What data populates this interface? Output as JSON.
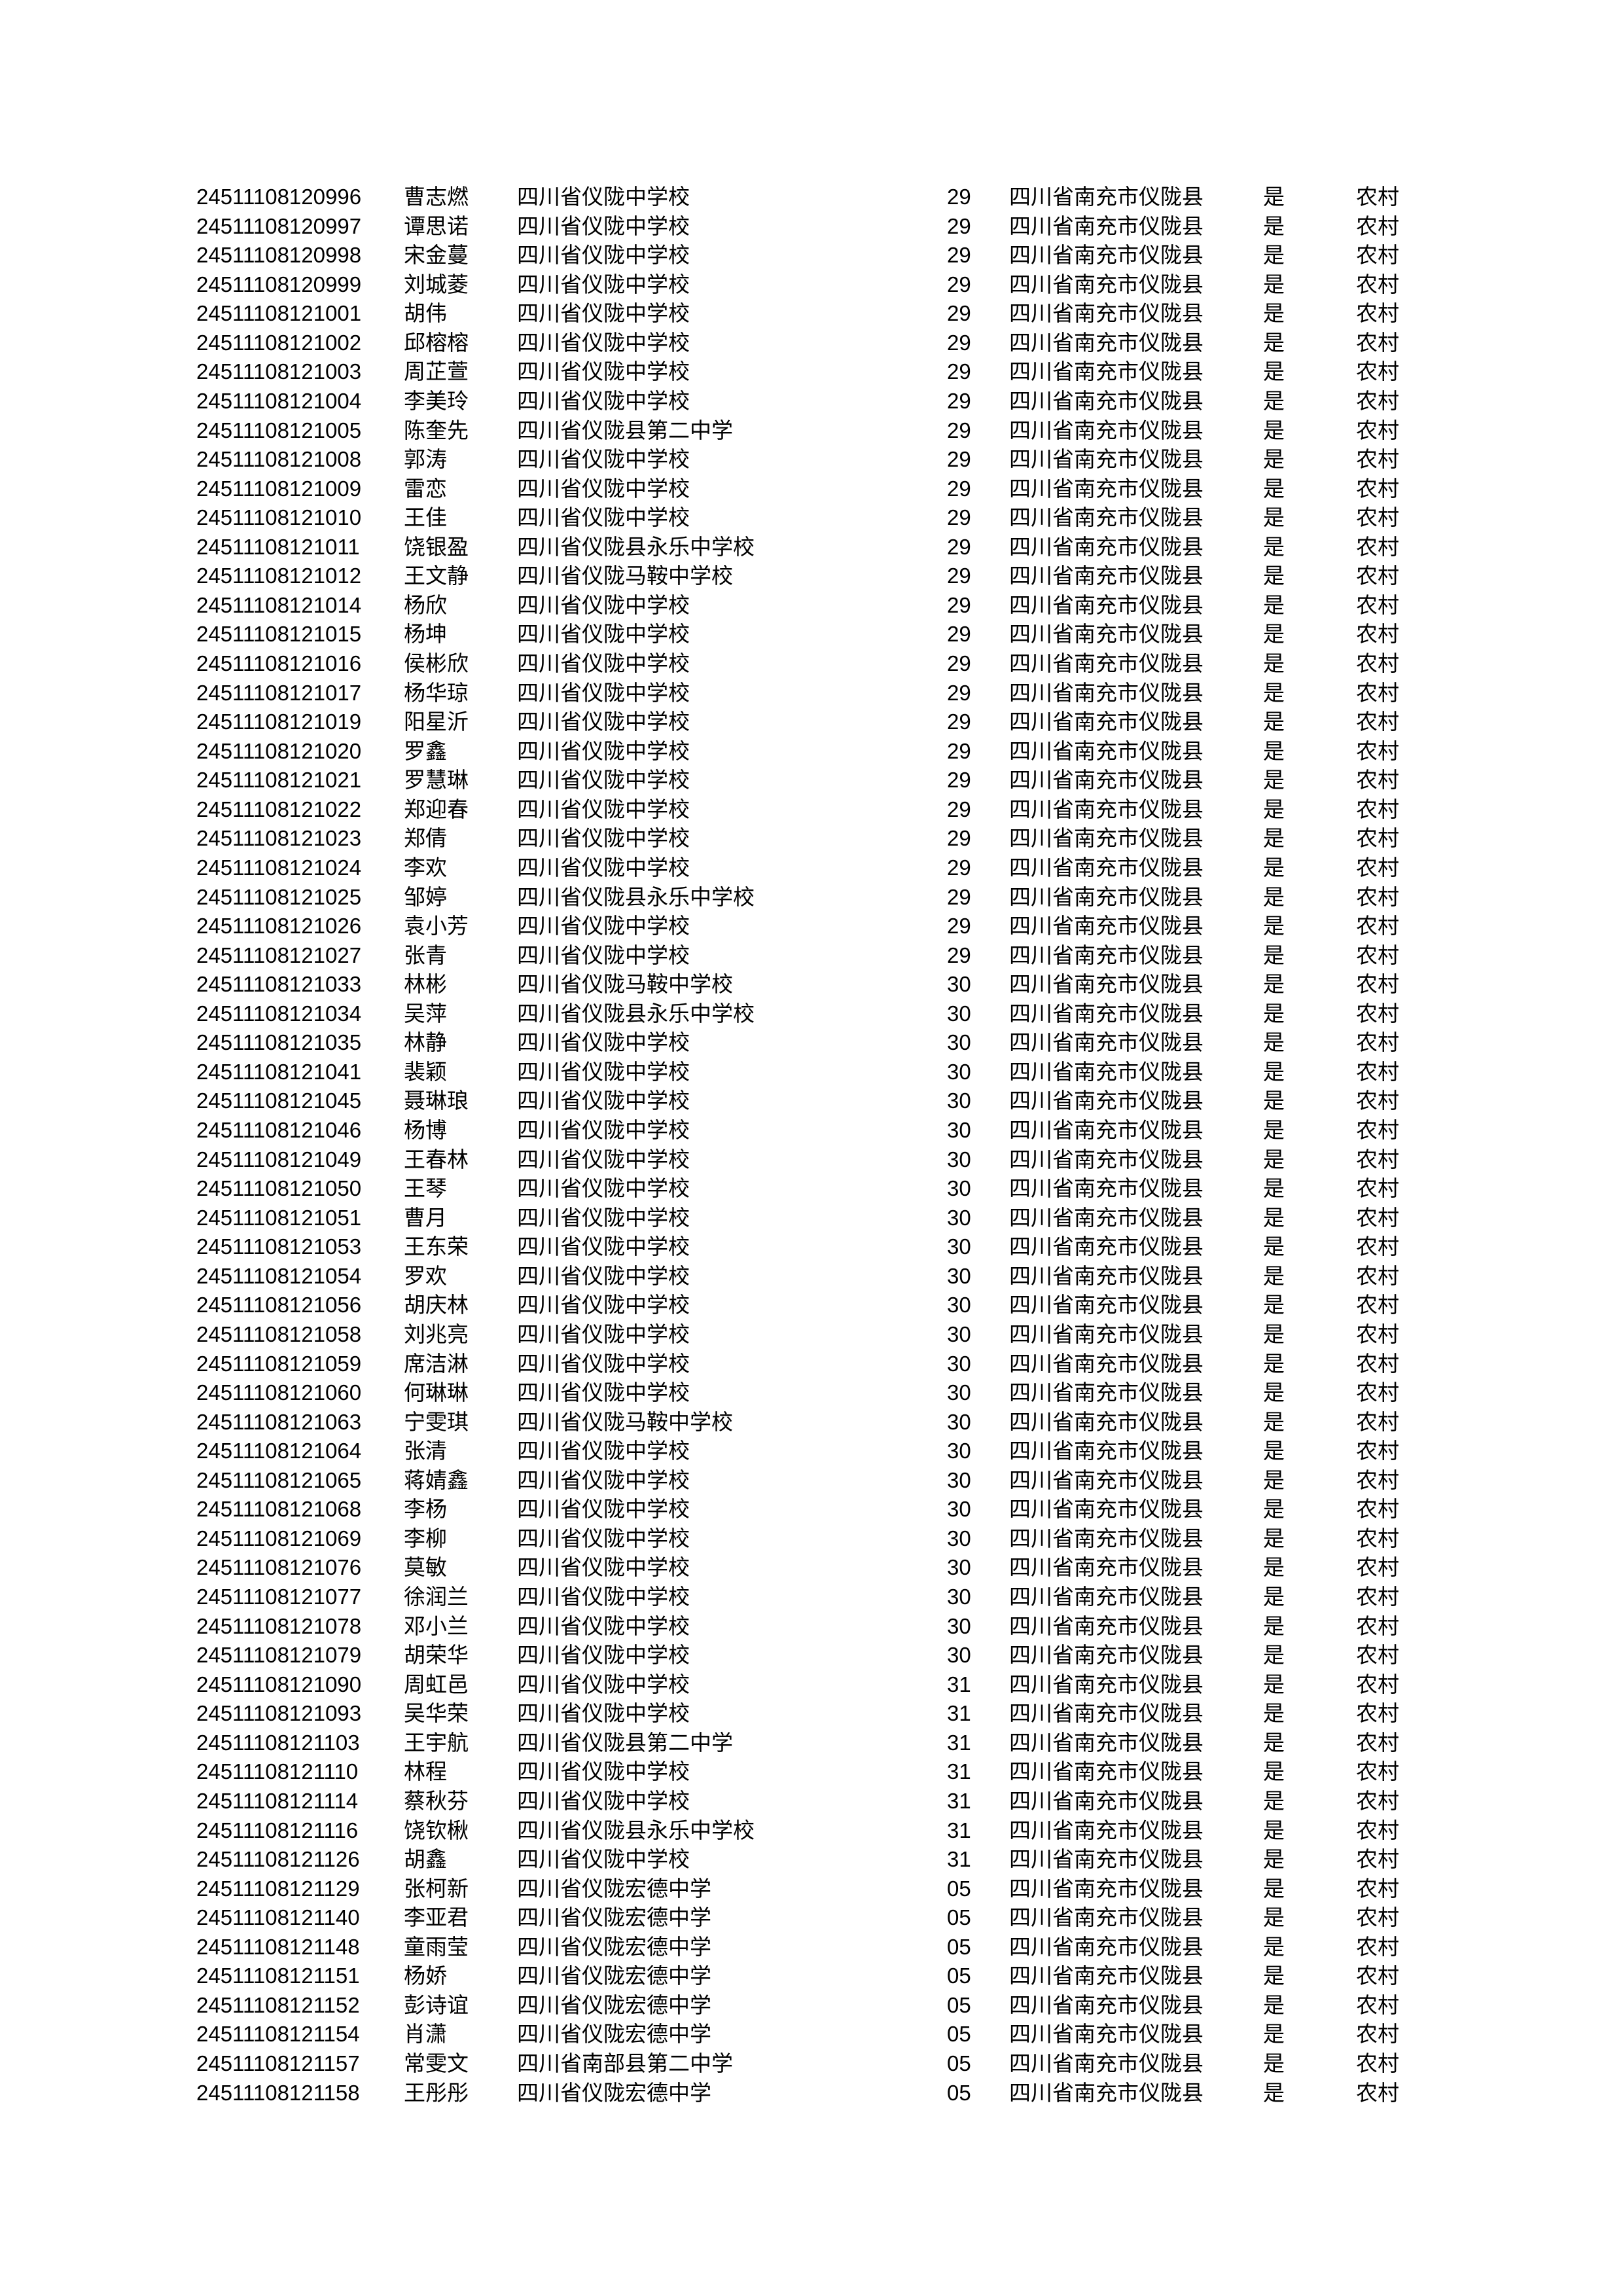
{
  "document": {
    "background_color": "#ffffff",
    "text_color": "#000000",
    "description_note": ""
  },
  "table": {
    "common": {
      "county": "四川省南充市仪陇县",
      "flag": "是",
      "area": "农村"
    },
    "rows": [
      {
        "id": "24511108120996",
        "name": "曹志燃",
        "school": "四川省仪陇中学校",
        "code": "29"
      },
      {
        "id": "24511108120997",
        "name": "谭思诺",
        "school": "四川省仪陇中学校",
        "code": "29"
      },
      {
        "id": "24511108120998",
        "name": "宋金蔓",
        "school": "四川省仪陇中学校",
        "code": "29"
      },
      {
        "id": "24511108120999",
        "name": "刘城菱",
        "school": "四川省仪陇中学校",
        "code": "29"
      },
      {
        "id": "24511108121001",
        "name": "胡伟",
        "school": "四川省仪陇中学校",
        "code": "29"
      },
      {
        "id": "24511108121002",
        "name": "邱榕榕",
        "school": "四川省仪陇中学校",
        "code": "29"
      },
      {
        "id": "24511108121003",
        "name": "周芷萱",
        "school": "四川省仪陇中学校",
        "code": "29"
      },
      {
        "id": "24511108121004",
        "name": "李美玲",
        "school": "四川省仪陇中学校",
        "code": "29"
      },
      {
        "id": "24511108121005",
        "name": "陈奎先",
        "school": "四川省仪陇县第二中学",
        "code": "29"
      },
      {
        "id": "24511108121008",
        "name": "郭涛",
        "school": "四川省仪陇中学校",
        "code": "29"
      },
      {
        "id": "24511108121009",
        "name": "雷恋",
        "school": "四川省仪陇中学校",
        "code": "29"
      },
      {
        "id": "24511108121010",
        "name": "王佳",
        "school": "四川省仪陇中学校",
        "code": "29"
      },
      {
        "id": "24511108121011",
        "name": "饶银盈",
        "school": "四川省仪陇县永乐中学校",
        "code": "29"
      },
      {
        "id": "24511108121012",
        "name": "王文静",
        "school": "四川省仪陇马鞍中学校",
        "code": "29"
      },
      {
        "id": "24511108121014",
        "name": "杨欣",
        "school": "四川省仪陇中学校",
        "code": "29"
      },
      {
        "id": "24511108121015",
        "name": "杨坤",
        "school": "四川省仪陇中学校",
        "code": "29"
      },
      {
        "id": "24511108121016",
        "name": "侯彬欣",
        "school": "四川省仪陇中学校",
        "code": "29"
      },
      {
        "id": "24511108121017",
        "name": "杨华琼",
        "school": "四川省仪陇中学校",
        "code": "29"
      },
      {
        "id": "24511108121019",
        "name": "阳星沂",
        "school": "四川省仪陇中学校",
        "code": "29"
      },
      {
        "id": "24511108121020",
        "name": "罗鑫",
        "school": "四川省仪陇中学校",
        "code": "29"
      },
      {
        "id": "24511108121021",
        "name": "罗慧琳",
        "school": "四川省仪陇中学校",
        "code": "29"
      },
      {
        "id": "24511108121022",
        "name": "郑迎春",
        "school": "四川省仪陇中学校",
        "code": "29"
      },
      {
        "id": "24511108121023",
        "name": "郑倩",
        "school": "四川省仪陇中学校",
        "code": "29"
      },
      {
        "id": "24511108121024",
        "name": "李欢",
        "school": "四川省仪陇中学校",
        "code": "29"
      },
      {
        "id": "24511108121025",
        "name": "邹婷",
        "school": "四川省仪陇县永乐中学校",
        "code": "29"
      },
      {
        "id": "24511108121026",
        "name": "袁小芳",
        "school": "四川省仪陇中学校",
        "code": "29"
      },
      {
        "id": "24511108121027",
        "name": "张青",
        "school": "四川省仪陇中学校",
        "code": "29"
      },
      {
        "id": "24511108121033",
        "name": "林彬",
        "school": "四川省仪陇马鞍中学校",
        "code": "30"
      },
      {
        "id": "24511108121034",
        "name": "吴萍",
        "school": "四川省仪陇县永乐中学校",
        "code": "30"
      },
      {
        "id": "24511108121035",
        "name": "林静",
        "school": "四川省仪陇中学校",
        "code": "30"
      },
      {
        "id": "24511108121041",
        "name": "裴颖",
        "school": "四川省仪陇中学校",
        "code": "30"
      },
      {
        "id": "24511108121045",
        "name": "聂琳琅",
        "school": "四川省仪陇中学校",
        "code": "30"
      },
      {
        "id": "24511108121046",
        "name": "杨博",
        "school": "四川省仪陇中学校",
        "code": "30"
      },
      {
        "id": "24511108121049",
        "name": "王春林",
        "school": "四川省仪陇中学校",
        "code": "30"
      },
      {
        "id": "24511108121050",
        "name": "王琴",
        "school": "四川省仪陇中学校",
        "code": "30"
      },
      {
        "id": "24511108121051",
        "name": "曹月",
        "school": "四川省仪陇中学校",
        "code": "30"
      },
      {
        "id": "24511108121053",
        "name": "王东荣",
        "school": "四川省仪陇中学校",
        "code": "30"
      },
      {
        "id": "24511108121054",
        "name": "罗欢",
        "school": "四川省仪陇中学校",
        "code": "30"
      },
      {
        "id": "24511108121056",
        "name": "胡庆林",
        "school": "四川省仪陇中学校",
        "code": "30"
      },
      {
        "id": "24511108121058",
        "name": "刘兆亮",
        "school": "四川省仪陇中学校",
        "code": "30"
      },
      {
        "id": "24511108121059",
        "name": "席洁淋",
        "school": "四川省仪陇中学校",
        "code": "30"
      },
      {
        "id": "24511108121060",
        "name": "何琳琳",
        "school": "四川省仪陇中学校",
        "code": "30"
      },
      {
        "id": "24511108121063",
        "name": "宁雯琪",
        "school": "四川省仪陇马鞍中学校",
        "code": "30"
      },
      {
        "id": "24511108121064",
        "name": "张清",
        "school": "四川省仪陇中学校",
        "code": "30"
      },
      {
        "id": "24511108121065",
        "name": "蒋婧鑫",
        "school": "四川省仪陇中学校",
        "code": "30"
      },
      {
        "id": "24511108121068",
        "name": "李杨",
        "school": "四川省仪陇中学校",
        "code": "30"
      },
      {
        "id": "24511108121069",
        "name": "李柳",
        "school": "四川省仪陇中学校",
        "code": "30"
      },
      {
        "id": "24511108121076",
        "name": "莫敏",
        "school": "四川省仪陇中学校",
        "code": "30"
      },
      {
        "id": "24511108121077",
        "name": "徐润兰",
        "school": "四川省仪陇中学校",
        "code": "30"
      },
      {
        "id": "24511108121078",
        "name": "邓小兰",
        "school": "四川省仪陇中学校",
        "code": "30"
      },
      {
        "id": "24511108121079",
        "name": "胡荣华",
        "school": "四川省仪陇中学校",
        "code": "30"
      },
      {
        "id": "24511108121090",
        "name": "周虹邑",
        "school": "四川省仪陇中学校",
        "code": "31"
      },
      {
        "id": "24511108121093",
        "name": "吴华荣",
        "school": "四川省仪陇中学校",
        "code": "31"
      },
      {
        "id": "24511108121103",
        "name": "王宇航",
        "school": "四川省仪陇县第二中学",
        "code": "31"
      },
      {
        "id": "24511108121110",
        "name": "林程",
        "school": "四川省仪陇中学校",
        "code": "31"
      },
      {
        "id": "24511108121114",
        "name": "蔡秋芬",
        "school": "四川省仪陇中学校",
        "code": "31"
      },
      {
        "id": "24511108121116",
        "name": "饶钦楸",
        "school": "四川省仪陇县永乐中学校",
        "code": "31"
      },
      {
        "id": "24511108121126",
        "name": "胡鑫",
        "school": "四川省仪陇中学校",
        "code": "31"
      },
      {
        "id": "24511108121129",
        "name": "张柯新",
        "school": "四川省仪陇宏德中学",
        "code": "05"
      },
      {
        "id": "24511108121140",
        "name": "李亚君",
        "school": "四川省仪陇宏德中学",
        "code": "05"
      },
      {
        "id": "24511108121148",
        "name": "童雨莹",
        "school": "四川省仪陇宏德中学",
        "code": "05"
      },
      {
        "id": "24511108121151",
        "name": "杨娇",
        "school": "四川省仪陇宏德中学",
        "code": "05"
      },
      {
        "id": "24511108121152",
        "name": "彭诗谊",
        "school": "四川省仪陇宏德中学",
        "code": "05"
      },
      {
        "id": "24511108121154",
        "name": "肖潇",
        "school": "四川省仪陇宏德中学",
        "code": "05"
      },
      {
        "id": "24511108121157",
        "name": "常雯文",
        "school": "四川省南部县第二中学",
        "code": "05"
      },
      {
        "id": "24511108121158",
        "name": "王彤彤",
        "school": "四川省仪陇宏德中学",
        "code": "05"
      }
    ]
  }
}
